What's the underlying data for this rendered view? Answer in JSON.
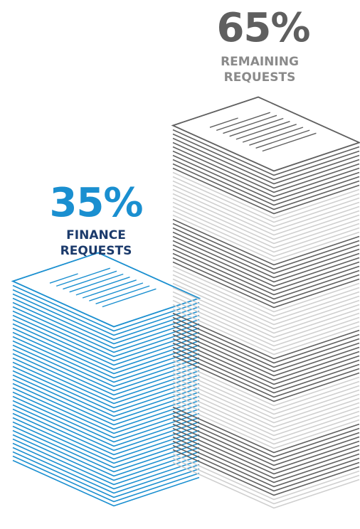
{
  "chart_data": {
    "type": "pictogram",
    "categories": [
      "FINANCE REQUESTS",
      "REMAINING REQUESTS"
    ],
    "values": [
      35,
      65
    ],
    "value_labels": [
      "35%",
      "65%"
    ],
    "colors": [
      "#1a8fd0",
      "#5f5f5f"
    ]
  }
}
